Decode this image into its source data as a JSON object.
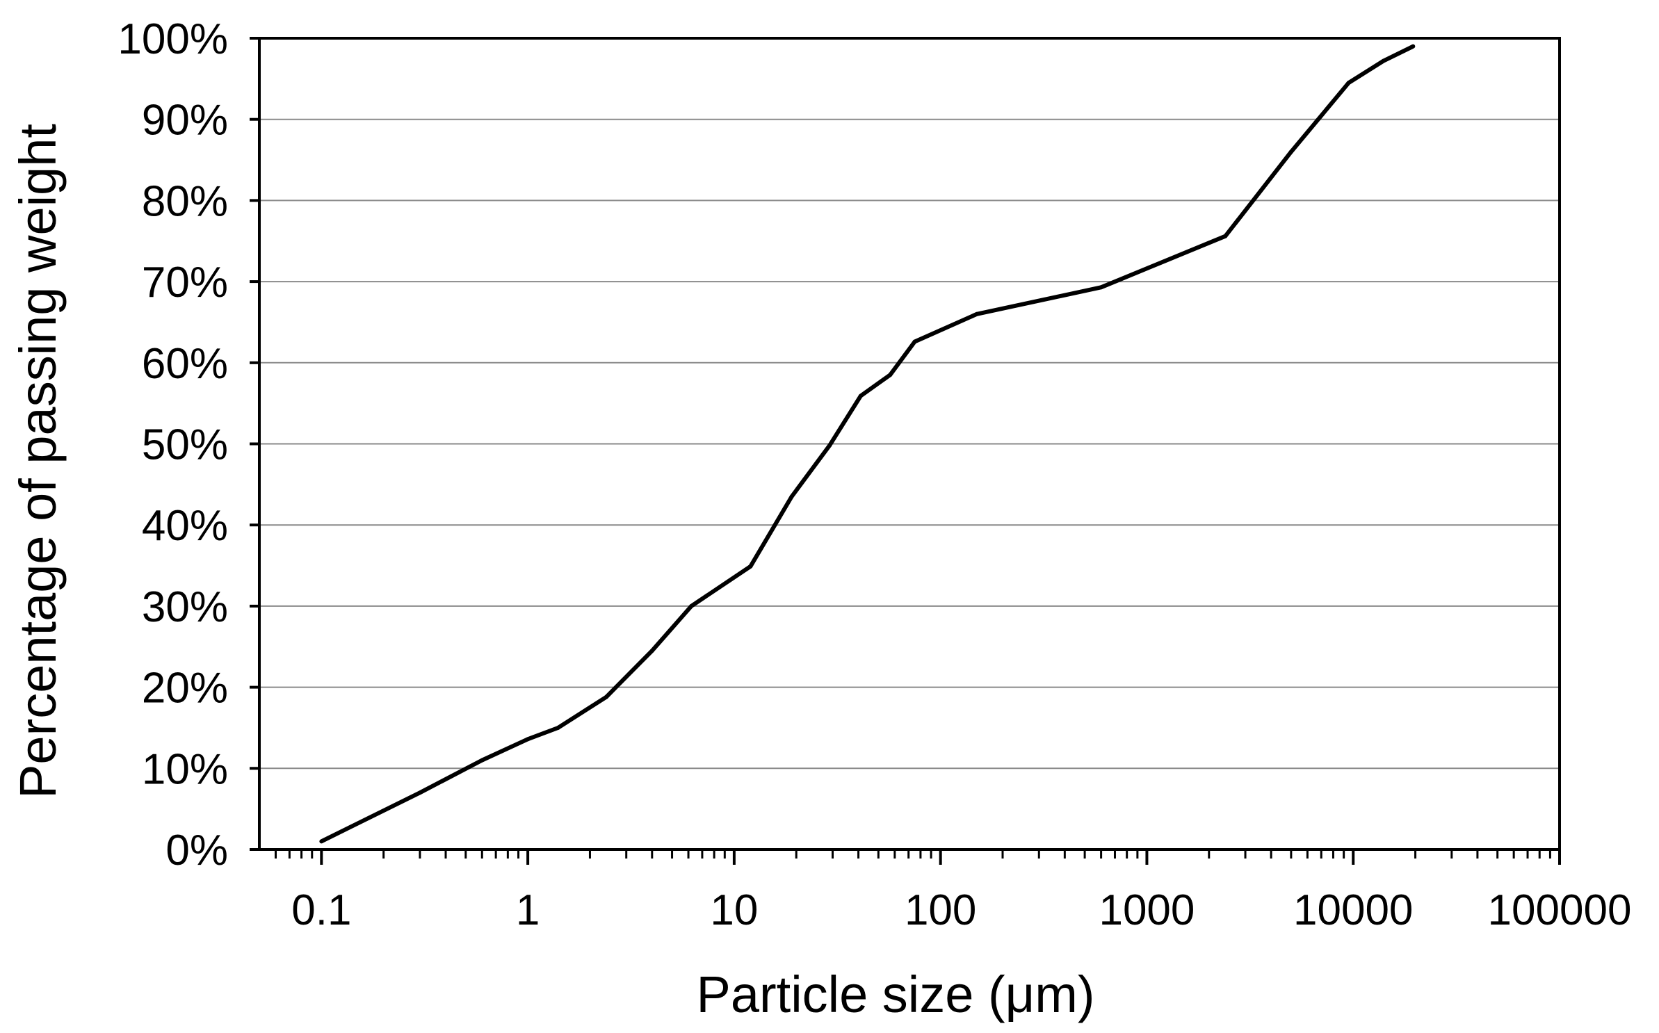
{
  "chart_data": {
    "type": "line",
    "title": "",
    "xlabel": "Particle size (μm)",
    "ylabel": "Percentage of passing weight",
    "x_scale": "log",
    "xlim": [
      0.05,
      100000
    ],
    "ylim": [
      0,
      100
    ],
    "grid": {
      "horizontal": true,
      "vertical": false
    },
    "legend": "none",
    "x_ticks": [
      {
        "value": 0.1,
        "label": "0.1"
      },
      {
        "value": 1,
        "label": "1"
      },
      {
        "value": 10,
        "label": "10"
      },
      {
        "value": 100,
        "label": "100"
      },
      {
        "value": 1000,
        "label": "1000"
      },
      {
        "value": 10000,
        "label": "10000"
      },
      {
        "value": 100000,
        "label": "100000"
      }
    ],
    "y_ticks": [
      {
        "value": 0,
        "label": "0%"
      },
      {
        "value": 10,
        "label": "10%"
      },
      {
        "value": 20,
        "label": "20%"
      },
      {
        "value": 30,
        "label": "30%"
      },
      {
        "value": 40,
        "label": "40%"
      },
      {
        "value": 50,
        "label": "50%"
      },
      {
        "value": 60,
        "label": "60%"
      },
      {
        "value": 70,
        "label": "70%"
      },
      {
        "value": 80,
        "label": "80%"
      },
      {
        "value": 90,
        "label": "90%"
      },
      {
        "value": 100,
        "label": "100%"
      }
    ],
    "series": [
      {
        "color": "#000000",
        "x": [
          0.1,
          0.3,
          0.6,
          1,
          1.4,
          2.4,
          4,
          6.2,
          12,
          19,
          29,
          41,
          57,
          75,
          150,
          600,
          2400,
          5000,
          9500,
          14000,
          19500
        ],
        "y": [
          1,
          7,
          11,
          13.6,
          15,
          18.8,
          24.5,
          30,
          34.9,
          43.5,
          49.8,
          55.9,
          58.5,
          62.6,
          66,
          69.3,
          75.6,
          86,
          94.5,
          97.2,
          99
        ]
      }
    ]
  }
}
